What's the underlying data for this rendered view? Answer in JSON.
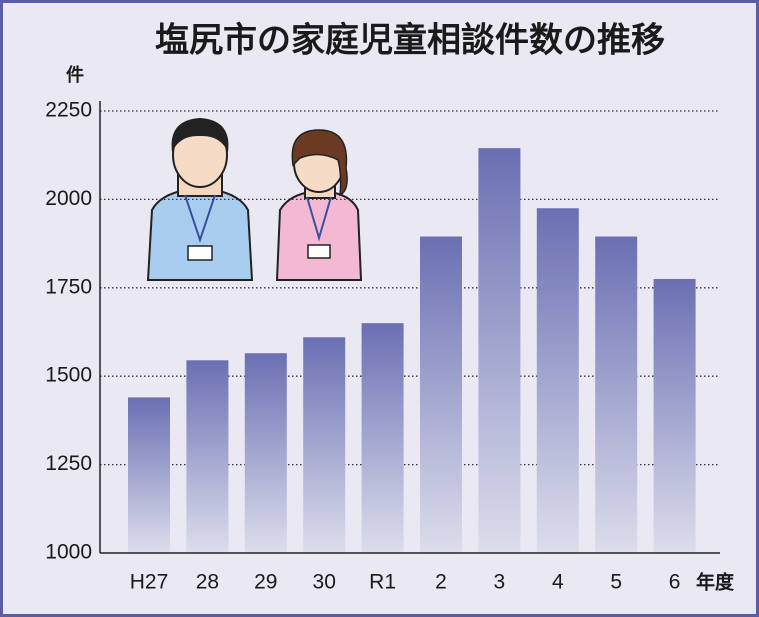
{
  "chart_data": {
    "type": "bar",
    "title": "塩尻市の家庭児童相談件数の推移",
    "y_label": "件",
    "x_unit": "年度",
    "categories": [
      "H27",
      "28",
      "29",
      "30",
      "R1",
      "2",
      "3",
      "4",
      "5",
      "6"
    ],
    "values": [
      1440,
      1545,
      1565,
      1610,
      1650,
      1895,
      2145,
      1975,
      1895,
      1775
    ],
    "color": "#6b6fb3",
    "ylim": [
      1000,
      2250
    ],
    "yticks": [
      1000,
      1250,
      1500,
      1750,
      2000,
      2250
    ],
    "grid": true
  }
}
